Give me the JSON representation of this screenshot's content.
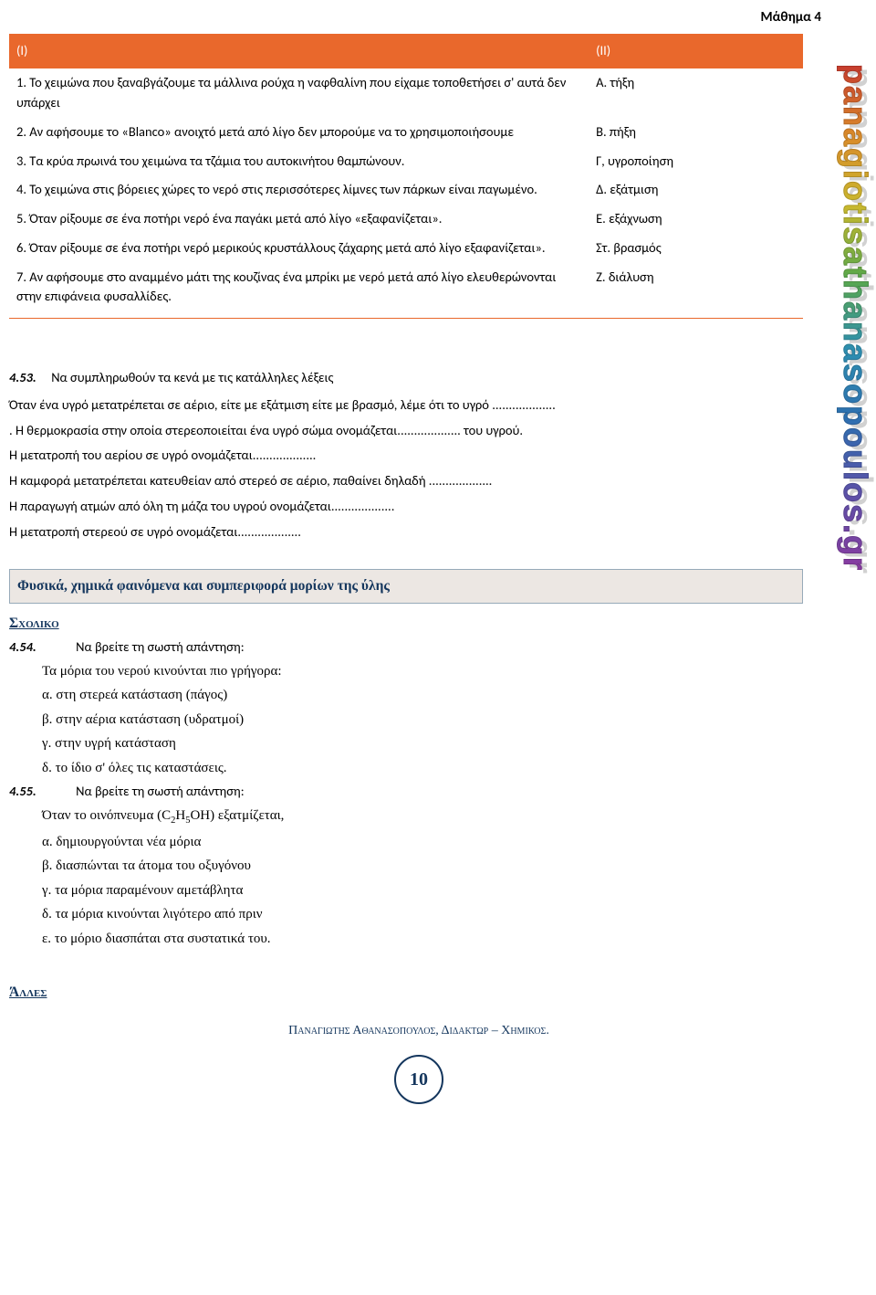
{
  "lesson_label": "Μάθημα 4",
  "watermark_text": "panagiotisathanasopoulos.gr",
  "colors": {
    "accent_orange": "#e9682c",
    "box_border": "#97aab9",
    "box_bg": "#ece7e3",
    "title_navy": "#14365d"
  },
  "table": {
    "head_left": "(Ι)",
    "head_right": "(ΙΙ)",
    "rows": [
      {
        "left": "1. Το χειμώνα που ξαναβγάζουμε τα μάλλινα ρούχα η ναφθαλίνη που είχαμε τοποθετήσει σ' αυτά δεν υπάρχει",
        "right": "Α. τήξη"
      },
      {
        "left": "2. Αν αφήσουμε το «Blanco» ανοιχτό μετά από λίγο δεν μπορούμε να το χρησιμοποιήσουμε",
        "right": "Β. πήξη"
      },
      {
        "left": "3. Τα κρύα πρωινά του χειμώνα τα τζάμια του αυτοκινήτου θαμπώνουν.",
        "right": "Γ, υγροποίηση"
      },
      {
        "left": "4. Το χειμώνα στις βόρειες χώρες το νερό στις περισσότερες λίμνες των πάρκων είναι παγωμένο.",
        "right": "Δ. εξάτμιση"
      },
      {
        "left": "5. Όταν ρίξουμε σε ένα ποτήρι νερό ένα παγάκι μετά από λίγο «εξαφανίζεται».",
        "right": "Ε. εξάχνωση"
      },
      {
        "left": "6. Όταν ρίξουμε σε ένα ποτήρι νερό μερικούς κρυστάλλους ζάχαρης μετά από λίγο εξαφανίζεται».",
        "right": "Στ. βρασμός"
      },
      {
        "left": "7. Αν αφήσουμε στο αναμμένο μάτι της κουζίνας  ένα μπρίκι με νερό μετά από      λίγο ελευθερώνονται στην επιφάνεια φυσαλλίδες.",
        "right": "Ζ. διάλυση"
      }
    ]
  },
  "ex453": {
    "num": "4.53.",
    "title": "Να συμπληρωθούν τα κενά με τις κατάλληλες λέξεις",
    "lines": [
      "Όταν ένα υγρό μετατρέπεται σε αέριο, είτε με εξάτμιση είτε με βρασμό, λέμε ότι το υγρό ...................",
      ". Η θερμοκρασία στην οποία στερεοποιείται ένα υγρό σώμα ονομάζεται................... του υγρού.",
      "Η μετατροπή του αερίου σε υγρό ονομάζεται...................",
      "Η καμφορά μετατρέπεται κατευθείαν από στερεό σε αέριο, παθαίνει δηλαδή ...................",
      "Η παραγωγή ατμών από όλη τη μάζα του υγρού ονομάζεται...................",
      "Η μετατροπή στερεού σε υγρό ονομάζεται..................."
    ]
  },
  "section_title": "Φυσικά, χημικά φαινόμενα και συμπεριφορά μορίων της ύλης",
  "sxoliko": "Σχολικο",
  "ex454": {
    "num": "4.54.",
    "prompt": "Να βρείτε τη σωστή απάντηση:",
    "lead": "Τα μόρια του νερού κινούνται πιο γρήγορα:",
    "opts": [
      "α. στη στερεά κατάσταση (πάγος)",
      "β. στην αέρια κατάσταση (υδρατμοί)",
      "γ. στην υγρή κατάσταση",
      "δ. το ίδιο σ' όλες τις καταστάσεις."
    ]
  },
  "ex455": {
    "num": "4.55.",
    "prompt": "Να βρείτε τη σωστή απάντηση:",
    "lead_html": "Όταν το οινόπνευμα (C<sub>2</sub>H<sub>5</sub>OH) εξατμίζεται,",
    "opts": [
      "α. δημιουργούνται νέα μόρια",
      "β. διασπώνται τα άτομα του οξυγόνου",
      "γ. τα μόρια παραμένουν αμετάβλητα",
      "δ. τα μόρια κινούνται λιγότερο από πριν",
      "ε. το μόριο διασπάται στα συστατικά του."
    ]
  },
  "alles": "Άλλες",
  "footer": "Παναγιωτης Αθανασοπουλος, Διδακτωρ – Χημικος.",
  "page_number": "10"
}
